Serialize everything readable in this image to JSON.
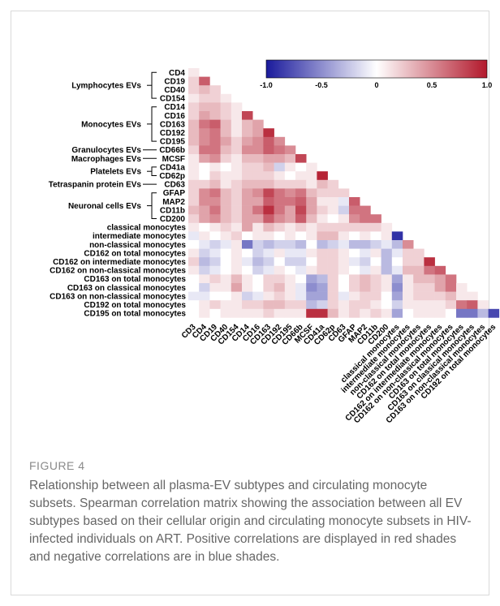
{
  "figure": {
    "label": "FIGURE 4",
    "caption": "Relationship between all plasma-EV subtypes and circulating monocyte subsets. Spearman correlation matrix showing the association between all EV subtypes based on their cellular origin and circulating monocyte subsets in HIV-infected individuals on ART. Positive correlations are displayed in red shades and negative correlations are in blue shades."
  },
  "colors": {
    "negative": "#1a1a9c",
    "neutral": "#ffffff",
    "positive": "#b2182b"
  },
  "chart_data": {
    "type": "heatmap",
    "colorbar": {
      "min": -1.0,
      "max": 1.0,
      "ticks": [
        "-1.0",
        "-0.5",
        "0",
        "0.5",
        "1.0"
      ]
    },
    "variables": [
      "CD4",
      "CD19",
      "CD40",
      "CD154",
      "CD14",
      "CD16",
      "CD163",
      "CD192",
      "CD195",
      "CD66b",
      "MCSF",
      "CD41a",
      "CD62p",
      "CD63",
      "GFAP",
      "MAP2",
      "CD11b",
      "CD200",
      "classical monocytes",
      "intermediate monocytes",
      "non-classical monocytes",
      "CD162 on total monocytes",
      "CD162 on intermediate monocytes",
      "CD162 on non-classical monocytes",
      "CD163 on total monocytes",
      "CD163 on classical monocytes",
      "CD163 on non-classical monocytes",
      "CD192 on total monocytes",
      "CD195 on total monocytes"
    ],
    "column_labels": [
      "CD3",
      "CD4",
      "CD19",
      "CD40",
      "CD154",
      "CD14",
      "CD16",
      "CD163",
      "CD192",
      "CD195",
      "CD66b",
      "MCSF",
      "CD41a",
      "CD62p",
      "CD63",
      "GFAP",
      "MAP2",
      "CD11b",
      "CD200",
      "classical monocytes",
      "intermediate monocytes",
      "non-classical monocytes",
      "CD162 on total monocytes",
      "CD162 on intermediate monocytes",
      "CD162 on non-classical monocytes",
      "CD163 on total monocytes",
      "CD163 on classical monocytes",
      "CD163 on non-classical monocytes",
      "CD192 on total monocytes"
    ],
    "groups": [
      {
        "label": "Lymphocytes EVs",
        "rows": [
          0,
          3
        ]
      },
      {
        "label": "Monocytes EVs",
        "rows": [
          4,
          8
        ]
      },
      {
        "label": "Granulocytes EVs",
        "rows": [
          9,
          9
        ]
      },
      {
        "label": "Macrophages EVs",
        "rows": [
          10,
          10
        ]
      },
      {
        "label": "Platelets EVs",
        "rows": [
          11,
          12
        ]
      },
      {
        "label": "Tetraspanin protein EVs",
        "rows": [
          13,
          13
        ]
      },
      {
        "label": "Neuronal cells EVs",
        "rows": [
          14,
          17
        ]
      }
    ],
    "values": [
      [
        0.1
      ],
      [
        0.2,
        0.7
      ],
      [
        0.2,
        0.3,
        0.2
      ],
      [
        0.1,
        0.2,
        0.2,
        0.1
      ],
      [
        0.2,
        0.3,
        0.3,
        0.2,
        0.1
      ],
      [
        0.2,
        0.4,
        0.3,
        0.2,
        0.1,
        0.8
      ],
      [
        0.3,
        0.6,
        0.7,
        0.3,
        0.1,
        0.3,
        0.4
      ],
      [
        0.3,
        0.5,
        0.6,
        0.3,
        0.1,
        0.3,
        0.4,
        0.9
      ],
      [
        0.3,
        0.5,
        0.6,
        0.4,
        0.2,
        0.4,
        0.5,
        0.7,
        0.5
      ],
      [
        0.2,
        0.6,
        0.6,
        0.3,
        0.2,
        0.5,
        0.5,
        0.7,
        0.6,
        0.5
      ],
      [
        0.1,
        0.4,
        0.5,
        0.2,
        0.1,
        0.3,
        0.3,
        0.4,
        0.4,
        0.3,
        0.8
      ],
      [
        0.1,
        0.0,
        0.1,
        0.0,
        0.1,
        0.2,
        0.2,
        0.3,
        -0.2,
        0.1,
        0.0,
        0.1
      ],
      [
        0.1,
        0.0,
        0.2,
        0.1,
        0.1,
        0.2,
        0.2,
        0.2,
        0.1,
        0.0,
        0.1,
        0.1,
        0.95
      ],
      [
        0.2,
        0.2,
        0.3,
        0.1,
        0.2,
        0.3,
        0.3,
        0.3,
        0.2,
        0.2,
        0.2,
        0.1,
        0.3,
        0.2
      ],
      [
        0.2,
        0.5,
        0.6,
        0.3,
        0.2,
        0.4,
        0.5,
        0.8,
        0.6,
        0.5,
        0.6,
        0.3,
        0.2,
        0.2,
        0.2
      ],
      [
        0.2,
        0.5,
        0.5,
        0.3,
        0.2,
        0.4,
        0.4,
        0.7,
        0.6,
        0.6,
        0.7,
        0.4,
        0.1,
        0.1,
        -0.1,
        0.7
      ],
      [
        0.3,
        0.4,
        0.6,
        0.3,
        0.2,
        0.4,
        0.6,
        0.9,
        0.6,
        0.4,
        0.8,
        0.4,
        0.2,
        0.1,
        -0.2,
        0.6,
        0.6
      ],
      [
        0.2,
        0.4,
        0.5,
        0.3,
        0.2,
        0.4,
        0.4,
        0.7,
        0.5,
        0.4,
        0.7,
        0.3,
        0.1,
        0.0,
        0.1,
        0.5,
        0.6,
        0.6
      ],
      [
        0.1,
        0.0,
        0.1,
        0.2,
        0.1,
        0.4,
        0.1,
        0.3,
        0.2,
        0.1,
        0.2,
        0.1,
        0.2,
        0.2,
        0.2,
        0.2,
        0.2,
        0.2,
        0.1
      ],
      [
        -0.1,
        0.1,
        0.0,
        0.1,
        0.2,
        0.0,
        0.1,
        0.1,
        0.0,
        0.1,
        0.0,
        0.1,
        0.3,
        0.3,
        0.1,
        0.0,
        0.1,
        0.0,
        0.1,
        -0.9
      ],
      [
        0.0,
        -0.1,
        -0.2,
        -0.1,
        0.1,
        -0.6,
        -0.2,
        -0.3,
        -0.2,
        -0.2,
        -0.3,
        0.0,
        -0.3,
        -0.2,
        -0.1,
        -0.3,
        -0.3,
        -0.2,
        -0.1,
        -0.3,
        0.5
      ],
      [
        0.1,
        -0.2,
        -0.1,
        0.0,
        0.1,
        0.0,
        -0.2,
        -0.1,
        0.1,
        -0.1,
        -0.1,
        0.1,
        0.2,
        0.2,
        0.1,
        0.0,
        -0.1,
        0.1,
        -0.3,
        -0.1,
        0.2,
        0.2
      ],
      [
        0.2,
        -0.3,
        -0.2,
        0.0,
        0.1,
        -0.1,
        -0.3,
        -0.2,
        0.0,
        -0.2,
        -0.2,
        0.0,
        0.2,
        0.2,
        0.1,
        -0.1,
        -0.2,
        0.0,
        -0.3,
        0.0,
        0.2,
        0.2,
        0.9
      ],
      [
        0.1,
        -0.2,
        -0.1,
        0.0,
        0.1,
        0.0,
        -0.2,
        -0.1,
        0.1,
        0.0,
        -0.1,
        0.1,
        0.2,
        0.2,
        0.1,
        0.0,
        -0.1,
        0.1,
        -0.3,
        -0.1,
        0.3,
        0.3,
        0.6,
        0.7
      ],
      [
        0.0,
        0.1,
        0.2,
        0.1,
        0.3,
        0.1,
        0.0,
        0.2,
        0.2,
        0.1,
        0.0,
        -0.4,
        -0.3,
        0.2,
        0.0,
        0.2,
        0.3,
        0.2,
        0.1,
        -0.4,
        0.1,
        0.3,
        0.3,
        0.4,
        0.6
      ],
      [
        0.0,
        -0.2,
        0.1,
        0.1,
        0.4,
        0.1,
        0.0,
        0.2,
        0.3,
        0.1,
        -0.1,
        -0.5,
        -0.4,
        0.2,
        0.0,
        0.2,
        0.3,
        0.2,
        0.1,
        -0.5,
        0.1,
        0.2,
        0.2,
        0.4,
        0.6,
        0.1
      ],
      [
        -0.1,
        -0.1,
        0.0,
        0.0,
        0.1,
        -0.2,
        -0.1,
        0.1,
        0.2,
        0.1,
        -0.1,
        -0.4,
        -0.4,
        0.2,
        -0.1,
        0.1,
        0.2,
        0.2,
        0.0,
        -0.4,
        0.1,
        0.2,
        0.2,
        0.2,
        0.3,
        0.1,
        0.1
      ],
      [
        0.0,
        0.1,
        0.2,
        0.1,
        0.1,
        0.2,
        0.2,
        0.3,
        0.3,
        0.2,
        0.2,
        -0.3,
        -0.2,
        0.2,
        0.1,
        0.2,
        0.2,
        0.1,
        0.0,
        -0.2,
        0.1,
        0.1,
        0.1,
        0.1,
        0.2,
        0.6,
        0.7,
        0.1
      ],
      [
        0.0,
        0.1,
        0.0,
        0.1,
        0.1,
        0.1,
        0.1,
        0.2,
        0.1,
        0.1,
        0.1,
        0.9,
        0.9,
        0.3,
        0.1,
        0.2,
        0.1,
        0.2,
        0.1,
        -0.4,
        0.0,
        0.1,
        0.1,
        0.1,
        0.0,
        -0.6,
        -0.6,
        -0.3,
        -0.8
      ]
    ]
  }
}
